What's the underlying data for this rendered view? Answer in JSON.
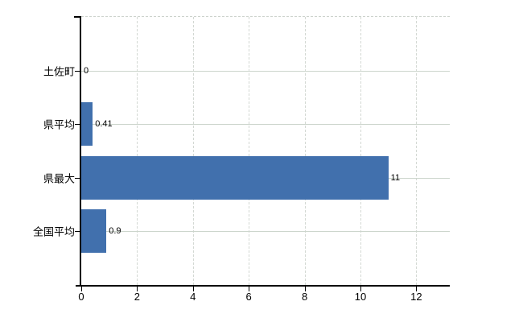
{
  "chart_data": {
    "type": "bar",
    "orientation": "horizontal",
    "title": "",
    "categories": [
      "土佐町",
      "県平均",
      "県最大",
      "全国平均"
    ],
    "values": [
      0,
      0.41,
      11,
      0.9
    ],
    "value_labels": [
      "0",
      "0.41",
      "11",
      "0.9"
    ],
    "x_ticks": [
      0,
      2,
      4,
      6,
      8,
      10,
      12
    ],
    "x_tick_labels": [
      "0",
      "2",
      "4",
      "6",
      "8",
      "10",
      "12"
    ],
    "xlim": [
      0,
      13.2
    ],
    "grid": true,
    "legend": "none",
    "colors": {
      "bar": "#4170ad",
      "axis": "#000000",
      "h_gridline": "#ccd5cc",
      "v_gridline": "#d3d8d3",
      "background": "#ffffff"
    }
  }
}
